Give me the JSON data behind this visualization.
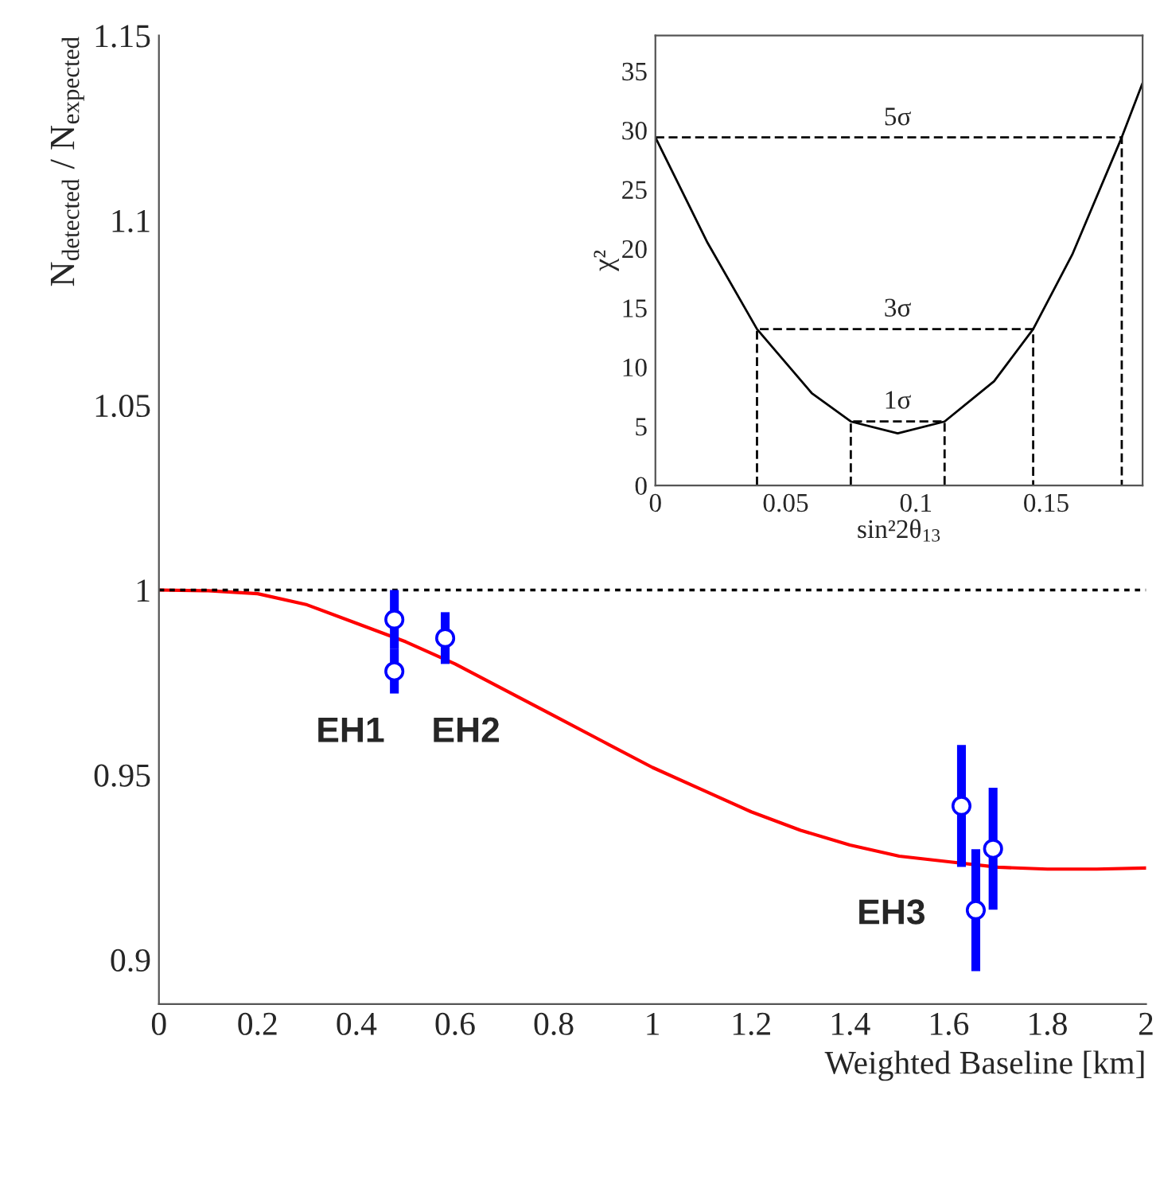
{
  "chart_data": [
    {
      "type": "line",
      "xlabel": "Weighted Baseline [km]",
      "ylabel": "N$_{detected}$ / N$_{expected}$",
      "xlim": [
        0,
        2
      ],
      "ylim": [
        0.888,
        1.15
      ],
      "xticks": [
        0,
        0.2,
        0.4,
        0.6,
        0.8,
        1,
        1.2,
        1.4,
        1.6,
        1.8,
        2
      ],
      "yticks": [
        0.9,
        0.95,
        1,
        1.05,
        1.1,
        1.15
      ],
      "grid": false,
      "legend": false,
      "series": [
        {
          "color": "#ff0000",
          "line_style": "solid",
          "marker": "none",
          "x": [
            0,
            0.1,
            0.2,
            0.3,
            0.4,
            0.5,
            0.6,
            0.7,
            0.8,
            0.9,
            1,
            1.1,
            1.2,
            1.3,
            1.4,
            1.5,
            1.6,
            1.7,
            1.8,
            1.9,
            2
          ],
          "values": [
            1.0,
            0.9998,
            0.999,
            0.996,
            0.991,
            0.986,
            0.98,
            0.973,
            0.966,
            0.959,
            0.952,
            0.946,
            0.94,
            0.935,
            0.931,
            0.928,
            0.9265,
            0.925,
            0.9245,
            0.9245,
            0.9248
          ]
        },
        {
          "type": "scatter",
          "color": "#0000ff",
          "marker": "circle",
          "x": [
            0.477,
            0.477,
            0.58,
            1.626,
            1.655,
            1.69
          ],
          "values": [
            0.992,
            0.978,
            0.987,
            0.9416,
            0.9134,
            0.93
          ],
          "errors": [
            0.008,
            0.006,
            0.007,
            0.0165,
            0.0165,
            0.0165
          ]
        }
      ],
      "ref_lines": [
        {
          "axis": "y",
          "value": 1,
          "color": "#000000",
          "line_style": "dotted"
        }
      ],
      "annotations": [
        "EH1",
        "EH2",
        "EH3"
      ]
    },
    {
      "type": "line",
      "xlabel": "sin²2θ$_{13}$",
      "ylabel": "χ²",
      "xlim": [
        0,
        0.187
      ],
      "ylim": [
        0,
        38
      ],
      "xticks": [
        0,
        0.05,
        0.1,
        0.15
      ],
      "yticks": [
        0,
        5,
        10,
        15,
        20,
        25,
        30,
        35
      ],
      "grid": false,
      "legend": false,
      "series": [
        {
          "color": "#000000",
          "line_style": "solid",
          "marker": "none",
          "x": [
            0,
            0.02,
            0.039,
            0.06,
            0.075,
            0.093,
            0.111,
            0.13,
            0.145,
            0.16,
            0.179,
            0.187
          ],
          "values": [
            29.4,
            20.5,
            13.2,
            7.8,
            5.4,
            4.4,
            5.4,
            8.8,
            13.2,
            19.5,
            29.4,
            34
          ]
        },
        {
          "type": "line",
          "color": "#000000",
          "line_style": "dashed",
          "marker": "none",
          "x": [
            0.075,
            0.075,
            0.111,
            0.111
          ],
          "values": [
            0,
            5.4,
            5.4,
            0
          ]
        },
        {
          "type": "line",
          "color": "#000000",
          "line_style": "dashed",
          "marker": "none",
          "x": [
            0.039,
            0.039,
            0.145,
            0.145
          ],
          "values": [
            0,
            13.2,
            13.2,
            0
          ]
        },
        {
          "type": "line",
          "color": "#000000",
          "line_style": "dashed",
          "marker": "none",
          "x": [
            0,
            0.179,
            0.179
          ],
          "values": [
            29.4,
            29.4,
            0
          ]
        }
      ],
      "annotations": [
        "1σ",
        "3σ",
        "5σ"
      ]
    }
  ]
}
